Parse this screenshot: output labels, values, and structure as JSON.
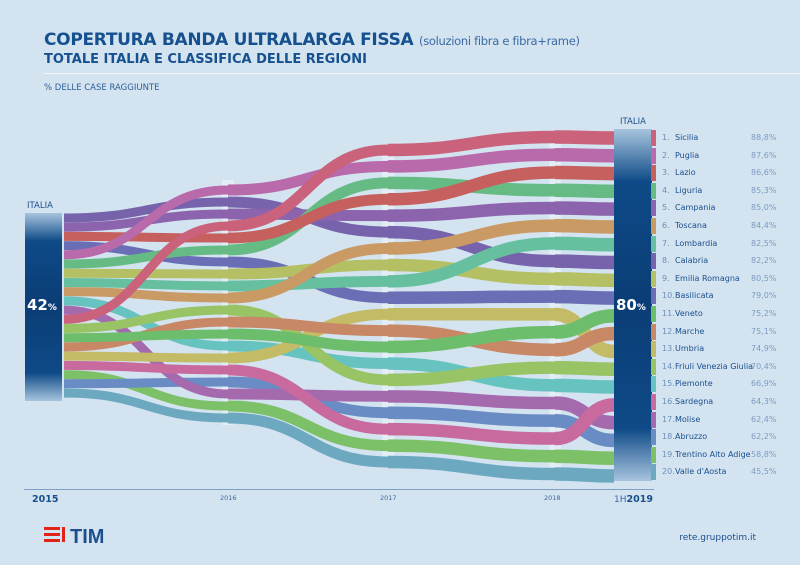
{
  "header": {
    "title": "COPERTURA BANDA ULTRALARGA FISSA",
    "title_note": "(soluzioni fibra e fibra+rame)",
    "subtitle": "TOTALE ITALIA E CLASSIFICA DELLE REGIONI",
    "unit": "% DELLE CASE RAGGIUNTE"
  },
  "italia": {
    "label": "ITALIA",
    "start_value": "42",
    "end_value": "80",
    "pct": "%"
  },
  "years": [
    "2015",
    "2016",
    "2017",
    "2018",
    "1H",
    "2019"
  ],
  "footer": {
    "brand": "TIM",
    "site": "rete.gruppotim.it"
  },
  "chart_data": {
    "type": "bump",
    "x": [
      "2015",
      "2016",
      "2017",
      "2018",
      "1H2019"
    ],
    "italia_values": {
      "2015": 42,
      "1H2019": 80
    },
    "regions": [
      {
        "rank": "1.",
        "name": "Sicilia",
        "value": "88,8%",
        "color": "#c9627a",
        "ranks": [
          12,
          4,
          1,
          1,
          1
        ]
      },
      {
        "rank": "2.",
        "name": "Puglia",
        "value": "87,6%",
        "color": "#b96aaa",
        "ranks": [
          5,
          1,
          2,
          2,
          2
        ]
      },
      {
        "rank": "3.",
        "name": "Lazio",
        "value": "86,6%",
        "color": "#c6605e",
        "ranks": [
          3,
          5,
          4,
          3,
          3
        ]
      },
      {
        "rank": "4.",
        "name": "Liguria",
        "value": "85,3%",
        "color": "#66bb84",
        "ranks": [
          6,
          6,
          3,
          4,
          4
        ]
      },
      {
        "rank": "5.",
        "name": "Campania",
        "value": "85,0%",
        "color": "#8c64ad",
        "ranks": [
          2,
          3,
          5,
          5,
          5
        ]
      },
      {
        "rank": "6.",
        "name": "Toscana",
        "value": "84,4%",
        "color": "#c99a63",
        "ranks": [
          9,
          10,
          7,
          6,
          6
        ]
      },
      {
        "rank": "7.",
        "name": "Lombardia",
        "value": "82,5%",
        "color": "#66c0a0",
        "ranks": [
          8,
          9,
          9,
          7,
          7
        ]
      },
      {
        "rank": "8.",
        "name": "Calabria",
        "value": "82,2%",
        "color": "#7663ab",
        "ranks": [
          1,
          2,
          6,
          8,
          8
        ]
      },
      {
        "rank": "9.",
        "name": "Emilia Romagna",
        "value": "80,5%",
        "color": "#b5c064",
        "ranks": [
          7,
          8,
          8,
          9,
          9
        ]
      },
      {
        "rank": "10.",
        "name": "Basilicata",
        "value": "79,0%",
        "color": "#6a6eb4",
        "ranks": [
          4,
          7,
          10,
          10,
          10
        ]
      },
      {
        "rank": "11.",
        "name": "Veneto",
        "value": "75,2%",
        "color": "#6cbd6c",
        "ranks": [
          14,
          13,
          13,
          12,
          11
        ]
      },
      {
        "rank": "12.",
        "name": "Marche",
        "value": "75,1%",
        "color": "#c88765",
        "ranks": [
          15,
          12,
          12,
          13,
          12
        ]
      },
      {
        "rank": "13.",
        "name": "Umbria",
        "value": "74,9%",
        "color": "#c4bb66",
        "ranks": [
          16,
          15,
          11,
          11,
          13
        ]
      },
      {
        "rank": "14.",
        "name": "Friuli Venezia Giulia",
        "value": "70,4%",
        "color": "#98c466",
        "ranks": [
          13,
          11,
          15,
          14,
          14
        ]
      },
      {
        "rank": "15.",
        "name": "Piemonte",
        "value": "66,9%",
        "color": "#66c3c0",
        "ranks": [
          10,
          14,
          14,
          15,
          15
        ]
      },
      {
        "rank": "16.",
        "name": "Sardegna",
        "value": "64,3%",
        "color": "#c86a9e",
        "ranks": [
          17,
          16,
          18,
          18,
          16
        ]
      },
      {
        "rank": "17.",
        "name": "Molise",
        "value": "62,4%",
        "color": "#a56aae",
        "ranks": [
          11,
          18,
          16,
          16,
          17
        ]
      },
      {
        "rank": "18.",
        "name": "Abruzzo",
        "value": "62,2%",
        "color": "#6a8cc4",
        "ranks": [
          19,
          17,
          17,
          17,
          18
        ]
      },
      {
        "rank": "19.",
        "name": "Trentino Alto Adige",
        "value": "58,8%",
        "color": "#7cc068",
        "ranks": [
          18,
          19,
          19,
          19,
          19
        ]
      },
      {
        "rank": "20.",
        "name": "Valle d'Aosta",
        "value": "45,5%",
        "color": "#6ca8c0",
        "ranks": [
          20,
          20,
          20,
          20,
          20
        ]
      }
    ]
  },
  "colors": {
    "background": "#d3e3f0",
    "title": "#15508f",
    "column": "#0b3d75",
    "tim_red": "#e2231a",
    "tim_blue": "#1b4f8e"
  }
}
